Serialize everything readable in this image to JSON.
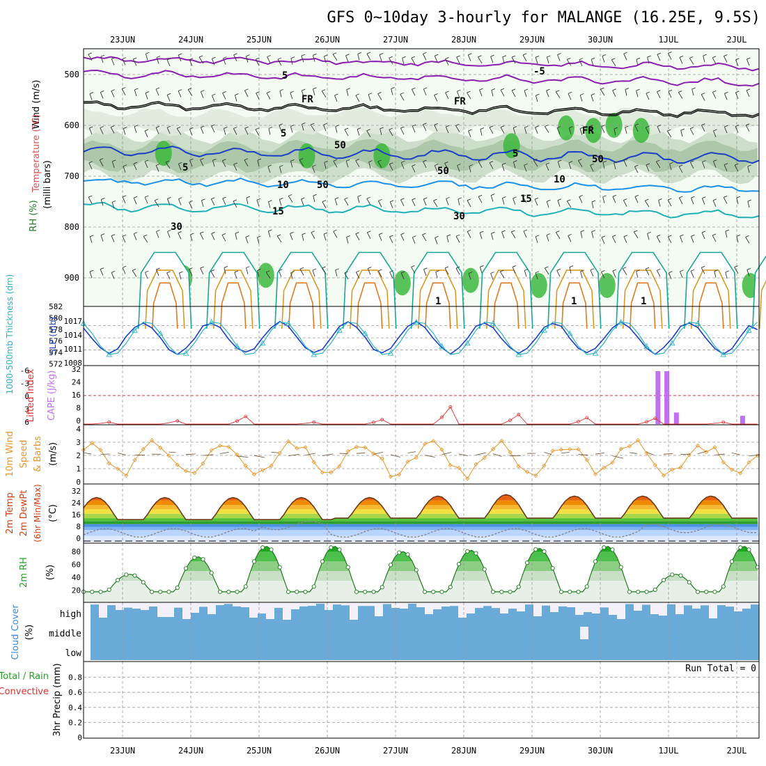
{
  "title": "GFS 0~10day 3-hourly for MALANGE (16.25E, 9.5S)",
  "days": [
    "23JUN",
    "24JUN",
    "25JUN",
    "26JUN",
    "27JUN",
    "28JUN",
    "29JUN",
    "30JUN",
    "1JUL",
    "2JUL"
  ],
  "colors": {
    "rh_green": "#3cb83c",
    "temp_orange": "#f08a00",
    "dew_blue": "#3d8be0",
    "cloud_blue": "#6aaad8",
    "cape_purple": "#c070f0",
    "li_red": "#e03030",
    "wind_orange": "#e8962a",
    "slp_blue": "#1a3ec8",
    "thick_cyan": "#28b4c8"
  },
  "panel1": {
    "ylabel_parts": [
      "Wind (m/s)",
      "Temperature (°C)",
      "RH (%)"
    ],
    "yunit": "(milli bars)",
    "yticks": [
      "500",
      "600",
      "700",
      "800",
      "900"
    ],
    "contour_labels": [
      "5",
      "5",
      "-5",
      "FR",
      "FR",
      "FR",
      "5",
      "5",
      "10",
      "10",
      "15",
      "15",
      "50",
      "50",
      "50",
      "30",
      "30",
      "50",
      "1",
      "1",
      "1"
    ]
  },
  "panel2": {
    "ylabel_left": "1000-500mb Thickness (dm)",
    "ylabel_right": "SLP (mb)",
    "yticks_left": [
      "582",
      "580",
      "578",
      "576",
      "574",
      "572"
    ],
    "yticks_right": [
      "1017",
      "1014",
      "1011",
      "1008"
    ]
  },
  "panel3": {
    "ylabel_left": "Lifted Index",
    "ylabel_right": "CAPE (J/kg)",
    "yticks_left": [
      "-6",
      "-3",
      "0",
      "3",
      "6"
    ],
    "yticks_right": [
      "32",
      "24",
      "16",
      "8",
      "0"
    ]
  },
  "panel4": {
    "ylabel_parts": [
      "10m Wind",
      "Speed",
      "& Barbs"
    ],
    "yunit": "(m/s)",
    "yticks": [
      "4",
      "3",
      "2",
      "1",
      "0"
    ]
  },
  "panel5": {
    "ylabel_parts": [
      "2m Temp",
      "2m DewPt",
      "(6hr Min/Max)"
    ],
    "yunit": "(°C)",
    "yticks": [
      "32",
      "24",
      "16",
      "8",
      "0"
    ]
  },
  "panel6": {
    "ylabel": "2m RH",
    "yunit": "(%)",
    "yticks": [
      "80",
      "60",
      "40",
      "20"
    ]
  },
  "panel7": {
    "ylabel": "Cloud Cover",
    "yunit": "(%)",
    "levels": [
      "high",
      "middle",
      "low"
    ]
  },
  "panel8": {
    "ylabel_parts": [
      "Total / Rain",
      "Convective"
    ],
    "ylabel_unit": "3hr Precip (mm)",
    "yticks": [
      "0.8",
      "0.6",
      "0.4",
      "0.2",
      "0"
    ],
    "run_total": "Run Total = 0"
  },
  "chart_data": [
    {
      "type": "line",
      "name": "2m Temp",
      "x_labels": [
        "23JUN",
        "24JUN",
        "25JUN",
        "26JUN",
        "27JUN",
        "28JUN",
        "29JUN",
        "30JUN",
        "1JUL",
        "2JUL"
      ],
      "ylim": [
        0,
        34
      ],
      "daily_max": [
        30,
        30,
        30,
        30,
        31,
        32,
        31,
        31,
        31,
        30
      ],
      "daily_min": [
        15,
        15,
        15,
        16,
        16,
        16,
        16,
        16,
        16,
        16
      ],
      "dewpoint_range": [
        4,
        13
      ]
    },
    {
      "type": "line",
      "name": "2m RH",
      "ylim": [
        10,
        95
      ],
      "daily_max": [
        45,
        72,
        88,
        88,
        80,
        82,
        85,
        88,
        45,
        88
      ],
      "daily_min": [
        18,
        18,
        18,
        18,
        18,
        18,
        18,
        18,
        18,
        18
      ]
    },
    {
      "type": "line",
      "name": "SLP and Thickness",
      "ylim_slp": [
        1008,
        1019
      ],
      "ylim_thickness": [
        572,
        582
      ],
      "slp_range": [
        1009,
        1019
      ],
      "thickness_range": [
        573,
        580
      ]
    },
    {
      "type": "bar",
      "name": "CAPE",
      "ylim": [
        0,
        32
      ],
      "bars": [
        {
          "day": "30JUN",
          "value": 32
        },
        {
          "day": "30JUN",
          "value": 32
        },
        {
          "day": "30JUN",
          "value": 7
        },
        {
          "day": "2JUL",
          "value": 5
        }
      ]
    },
    {
      "type": "line",
      "name": "10m Wind Speed",
      "ylim": [
        0,
        4
      ],
      "range": [
        0.2,
        4.0
      ]
    },
    {
      "type": "bar",
      "name": "3hr Precip",
      "ylim": [
        0,
        1
      ],
      "run_total": 0
    }
  ]
}
